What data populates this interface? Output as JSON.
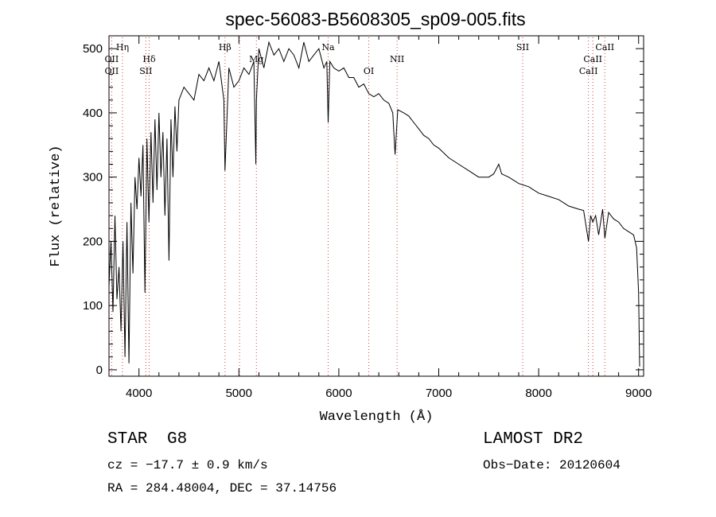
{
  "chart_data": {
    "type": "line",
    "title": "spec-56083-B5608305_sp09-005.fits",
    "xlabel": "Wavelength (Å)",
    "ylabel": "Flux (relative)",
    "xlim": [
      3700,
      9050
    ],
    "ylim": [
      -10,
      520
    ],
    "xticks": [
      4000,
      5000,
      6000,
      7000,
      8000,
      9000
    ],
    "yticks": [
      0,
      100,
      200,
      300,
      400,
      500
    ],
    "grid": false,
    "line_color": "#000000",
    "marker_line_color": "#d04040",
    "series": [
      {
        "x": [
          3700,
          3720,
          3740,
          3760,
          3780,
          3800,
          3820,
          3840,
          3860,
          3880,
          3900,
          3920,
          3940,
          3960,
          3980,
          4000,
          4020,
          4040,
          4060,
          4080,
          4100,
          4120,
          4140,
          4160,
          4180,
          4200,
          4220,
          4240,
          4260,
          4280,
          4300,
          4320,
          4340,
          4360,
          4380,
          4400,
          4450,
          4500,
          4550,
          4600,
          4650,
          4700,
          4750,
          4800,
          4850,
          4861,
          4900,
          4950,
          5000,
          5050,
          5100,
          5150,
          5170,
          5175,
          5200,
          5250,
          5300,
          5350,
          5400,
          5450,
          5500,
          5550,
          5600,
          5650,
          5700,
          5750,
          5800,
          5850,
          5880,
          5893,
          5910,
          5950,
          6000,
          6050,
          6100,
          6150,
          6200,
          6250,
          6300,
          6350,
          6400,
          6450,
          6500,
          6540,
          6563,
          6590,
          6650,
          6700,
          6750,
          6800,
          6850,
          6900,
          6950,
          7000,
          7100,
          7200,
          7300,
          7400,
          7500,
          7550,
          7600,
          7630,
          7700,
          7800,
          7900,
          8000,
          8100,
          8200,
          8300,
          8400,
          8450,
          8498,
          8520,
          8542,
          8570,
          8600,
          8640,
          8662,
          8700,
          8750,
          8800,
          8850,
          8900,
          8950,
          8980,
          9000,
          9010
        ],
        "values": [
          130,
          200,
          90,
          240,
          110,
          160,
          60,
          200,
          20,
          230,
          10,
          260,
          150,
          300,
          250,
          330,
          270,
          350,
          120,
          360,
          230,
          370,
          260,
          390,
          280,
          400,
          300,
          370,
          240,
          360,
          170,
          390,
          300,
          410,
          340,
          420,
          440,
          430,
          420,
          460,
          450,
          470,
          450,
          480,
          420,
          310,
          470,
          440,
          450,
          470,
          460,
          480,
          320,
          420,
          500,
          470,
          510,
          490,
          500,
          480,
          500,
          490,
          470,
          510,
          480,
          490,
          500,
          470,
          480,
          385,
          480,
          470,
          465,
          470,
          455,
          455,
          440,
          445,
          430,
          425,
          430,
          420,
          415,
          400,
          335,
          405,
          400,
          395,
          385,
          375,
          365,
          360,
          350,
          345,
          330,
          320,
          310,
          300,
          300,
          305,
          320,
          305,
          300,
          290,
          285,
          275,
          270,
          265,
          255,
          250,
          248,
          200,
          240,
          230,
          240,
          210,
          250,
          205,
          245,
          235,
          230,
          220,
          215,
          210,
          190,
          120,
          5
        ]
      }
    ],
    "annotations": [
      {
        "label": "OII",
        "x": 3727,
        "row": 1
      },
      {
        "label": "OII",
        "x": 3727,
        "row": 2
      },
      {
        "label": "Hη",
        "x": 3835,
        "row": 0
      },
      {
        "label": "Hδ",
        "x": 4102,
        "row": 1
      },
      {
        "label": "SII",
        "x": 4069,
        "row": 2
      },
      {
        "label": "Hβ",
        "x": 4861,
        "row": 0
      },
      {
        "label": "Mg",
        "x": 5175,
        "row": 1
      },
      {
        "label": "Na",
        "x": 5893,
        "row": 0
      },
      {
        "label": "OI",
        "x": 6300,
        "row": 2
      },
      {
        "label": "NII",
        "x": 6583,
        "row": 1
      },
      {
        "label": "SII",
        "x": 7840,
        "row": 0
      },
      {
        "label": "CaII",
        "x": 8662,
        "row": 0
      },
      {
        "label": "CaII",
        "x": 8542,
        "row": 1
      },
      {
        "label": "CaII",
        "x": 8498,
        "row": 2
      }
    ],
    "marker_lines": [
      3727,
      3835,
      4069,
      4102,
      4861,
      5007,
      5175,
      5893,
      6300,
      6583,
      7840,
      8498,
      8542,
      8662
    ]
  },
  "footer": {
    "object_type": "STAR",
    "subclass": "G8",
    "survey": "LAMOST DR2",
    "redshift": "cz = −17.7 ± 0.9 km/s",
    "obs_date": "Obs−Date: 20120604",
    "coords": "RA = 284.48004, DEC =  37.14756"
  }
}
